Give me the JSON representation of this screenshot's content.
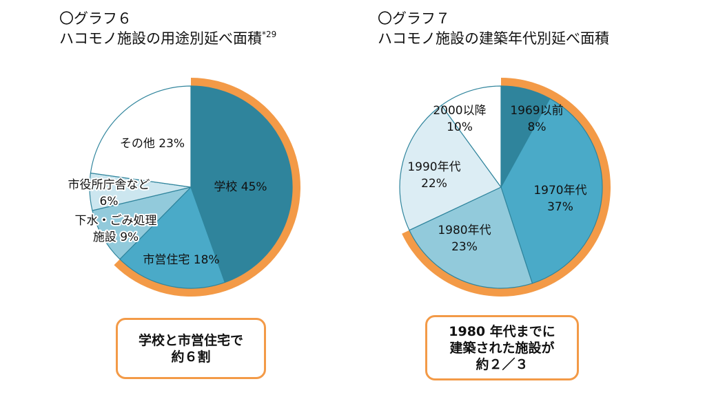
{
  "chart_data": [
    {
      "type": "pie",
      "title_prefix": "〇グラフ６",
      "title": "ハコモノ施設の用途別延べ面積",
      "footnote": "*29",
      "categories": [
        "学校",
        "市営住宅",
        "下水・ごみ処理施設",
        "市役所庁舎など",
        "その他"
      ],
      "values": [
        45,
        18,
        9,
        6,
        23
      ],
      "unit": "%",
      "labels": [
        {
          "name": "学校",
          "value": "45%",
          "lines": [
            "学校 45%"
          ]
        },
        {
          "name": "市営住宅",
          "value": "18%",
          "lines": [
            "市営住宅 18%"
          ]
        },
        {
          "name": "下水・ごみ処理施設",
          "value": "9%",
          "lines": [
            "下水・ごみ処理",
            "施設 9%"
          ]
        },
        {
          "name": "市役所庁舎など",
          "value": "6%",
          "lines": [
            "市役所庁舎など",
            "6%"
          ]
        },
        {
          "name": "その他",
          "value": "23%",
          "lines": [
            "その他 23%"
          ]
        }
      ],
      "colors": [
        "#2f849c",
        "#4aaac8",
        "#92cadb",
        "#cce6ef",
        "#ffffff"
      ],
      "highlight": {
        "categories": [
          "学校",
          "市営住宅"
        ],
        "color": "#f39a47"
      },
      "callout": "学校と市営住宅で\n約６割"
    },
    {
      "type": "pie",
      "title_prefix": "〇グラフ７",
      "title": "ハコモノ施設の建築年代別延べ面積",
      "categories": [
        "1969以前",
        "1970年代",
        "1980年代",
        "1990年代",
        "2000以降"
      ],
      "values": [
        8,
        37,
        23,
        22,
        10
      ],
      "unit": "%",
      "labels": [
        {
          "name": "1969以前",
          "value": "8%",
          "lines": [
            "1969以前",
            "8%"
          ]
        },
        {
          "name": "1970年代",
          "value": "37%",
          "lines": [
            "1970年代",
            "37%"
          ]
        },
        {
          "name": "1980年代",
          "value": "23%",
          "lines": [
            "1980年代",
            "23%"
          ]
        },
        {
          "name": "1990年代",
          "value": "22%",
          "lines": [
            "1990年代",
            "22%"
          ]
        },
        {
          "name": "2000以降",
          "value": "10%",
          "lines": [
            "2000以降",
            "10%"
          ]
        }
      ],
      "colors": [
        "#2f849c",
        "#4aaac8",
        "#92cadb",
        "#dcedf4",
        "#ffffff"
      ],
      "highlight": {
        "categories": [
          "1969以前",
          "1970年代",
          "1980年代"
        ],
        "color": "#f39a47"
      },
      "callout": "1980 年代までに\n建築された施設が\n約２／３"
    }
  ]
}
